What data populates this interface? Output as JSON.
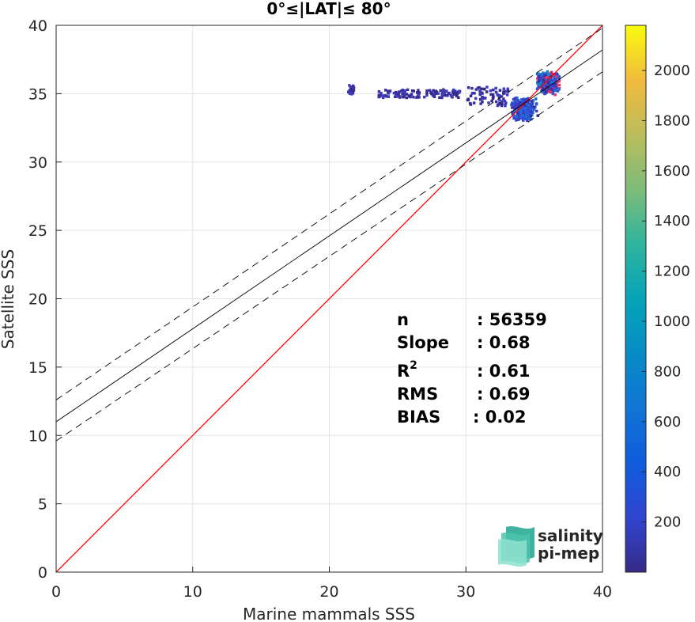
{
  "chart_data": {
    "type": "heatmap",
    "title": "0°≤|LAT|≤ 80°",
    "xlabel": "Marine mammals SSS",
    "ylabel": "Satellite SSS",
    "xlim": [
      0,
      40
    ],
    "ylim": [
      0,
      40
    ],
    "xticks": [
      "0",
      "10",
      "20",
      "30",
      "40"
    ],
    "yticks": [
      "0",
      "5",
      "10",
      "15",
      "20",
      "25",
      "30",
      "35",
      "40"
    ],
    "grid": true,
    "colormap": "parula",
    "colorbar": {
      "range": [
        0,
        2180
      ],
      "ticks": [
        "200",
        "400",
        "600",
        "800",
        "1000",
        "1200",
        "1400",
        "1600",
        "1800",
        "2000"
      ]
    },
    "lines": [
      {
        "name": "1:1",
        "color": "#ff0000",
        "style": "solid",
        "x": [
          0,
          40
        ],
        "y": [
          0,
          40
        ]
      },
      {
        "name": "fit",
        "color": "#000000",
        "style": "solid",
        "x": [
          0,
          40
        ],
        "y": [
          11.0,
          38.2
        ]
      },
      {
        "name": "fit+",
        "color": "#000000",
        "style": "dashed",
        "x": [
          0,
          40
        ],
        "y": [
          12.6,
          39.8
        ]
      },
      {
        "name": "fit-",
        "color": "#000000",
        "style": "dashed",
        "x": [
          0,
          40
        ],
        "y": [
          9.6,
          36.6
        ]
      }
    ],
    "clusters": [
      {
        "x": [
          21.3,
          21.7
        ],
        "y": [
          35.0,
          35.8
        ],
        "density": "low"
      },
      {
        "x": [
          23.5,
          29.5
        ],
        "y": [
          34.8,
          35.4
        ],
        "density": "low"
      },
      {
        "x": [
          30.0,
          33.0
        ],
        "y": [
          34.2,
          35.6
        ],
        "density": "low"
      },
      {
        "x": [
          33.2,
          35.2
        ],
        "y": [
          33.0,
          35.0
        ],
        "density": "medium"
      },
      {
        "x": [
          35.0,
          36.8
        ],
        "y": [
          35.0,
          36.8
        ],
        "density": "high"
      }
    ],
    "stats": [
      {
        "label": "n",
        "value": ": 56359"
      },
      {
        "label": "Slope",
        "value": ": 0.68"
      },
      {
        "label": "R",
        "sup": "2",
        "value": ": 0.61"
      },
      {
        "label": "RMS",
        "value": ": 0.69"
      },
      {
        "label": "BIAS",
        "value": ": 0.02"
      }
    ]
  },
  "logo": {
    "line1": "salinity",
    "line2": "pi-mep",
    "color": "#1fa68f"
  }
}
